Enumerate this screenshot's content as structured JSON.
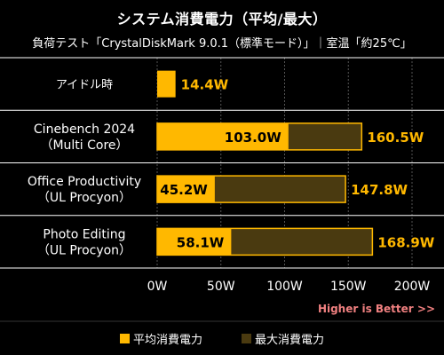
{
  "chart_data": {
    "type": "bar",
    "orientation": "horizontal",
    "title": "システム消費電力（平均/最大）",
    "subtitle": "負荷テスト「CrystalDiskMark 9.0.1（標準モード）」｜室温「約25℃」",
    "categories": [
      [
        "アイドル時"
      ],
      [
        "Cinebench 2024",
        "（Multi Core）"
      ],
      [
        "Office Productivity",
        "（UL Procyon）"
      ],
      [
        "Photo Editing",
        "（UL Procyon）"
      ]
    ],
    "series": [
      {
        "name": "平均消費電力",
        "color": "#FFB800",
        "values": [
          null,
          103.0,
          45.2,
          58.1
        ]
      },
      {
        "name": "最大消費電力",
        "color": "#4A3A10",
        "values": [
          14.4,
          160.5,
          147.8,
          168.9
        ]
      }
    ],
    "value_labels": [
      {
        "inside": null,
        "outside": "14.4W"
      },
      {
        "inside": "103.0W",
        "outside": "160.5W"
      },
      {
        "inside": "45.2W",
        "outside": "147.8W"
      },
      {
        "inside": "58.1W",
        "outside": "168.9W"
      }
    ],
    "xlim": [
      0,
      200
    ],
    "xticks": [
      0,
      50,
      100,
      150,
      200
    ],
    "xtick_labels": [
      "0W",
      "50W",
      "100W",
      "150W",
      "200W"
    ],
    "grid": true,
    "legend_position": "bottom",
    "annotation": "Higher is Better >>",
    "colors": {
      "accent": "#FFB800",
      "max_fill": "#4A3A10",
      "annotation": "#F08080",
      "text": "#FFFFFF",
      "background": "#000000"
    }
  }
}
